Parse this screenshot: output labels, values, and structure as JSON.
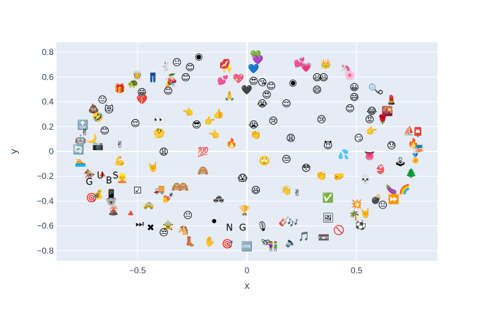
{
  "chart_data": {
    "type": "scatter",
    "xlabel": "x",
    "ylabel": "y",
    "xlim": [
      -0.87,
      0.87
    ],
    "ylim": [
      -0.88,
      0.88
    ],
    "xticks": [
      -0.5,
      0,
      0.5
    ],
    "xtick_labels": [
      "−0.5",
      "0",
      "0.5"
    ],
    "yticks": [
      -0.8,
      -0.6,
      -0.4,
      -0.2,
      0,
      0.2,
      0.4,
      0.6,
      0.8
    ],
    "ytick_labels": [
      "−0.8",
      "−0.6",
      "−0.4",
      "−0.2",
      "0",
      "0.2",
      "0.4",
      "0.6",
      "0.8"
    ],
    "grid": true,
    "colors": {
      "plot_bg": "#e5ecf6",
      "grid": "#ffffff",
      "text": "#2a3f5f"
    },
    "points": [
      {
        "x": -0.5,
        "y": 0.62,
        "m": "👳"
      },
      {
        "x": -0.37,
        "y": 0.69,
        "m": "🐇"
      },
      {
        "x": -0.32,
        "y": 0.72,
        "m": "😐"
      },
      {
        "x": -0.22,
        "y": 0.77,
        "m": "◉"
      },
      {
        "x": -0.1,
        "y": 0.71,
        "m": "💋"
      },
      {
        "x": -0.09,
        "y": 0.67,
        "m": "✨"
      },
      {
        "x": 0.04,
        "y": 0.78,
        "m": "💚"
      },
      {
        "x": 0.05,
        "y": 0.74,
        "m": "💜"
      },
      {
        "x": 0.24,
        "y": 0.72,
        "m": "💕"
      },
      {
        "x": 0.27,
        "y": 0.68,
        "m": "💗"
      },
      {
        "x": 0.36,
        "y": 0.71,
        "m": "👑"
      },
      {
        "x": 0.45,
        "y": 0.67,
        "m": "🦄"
      },
      {
        "x": 0.47,
        "y": 0.62,
        "m": "🌸"
      },
      {
        "x": -0.52,
        "y": 0.55,
        "m": "🐢"
      },
      {
        "x": -0.43,
        "y": 0.6,
        "m": "👖"
      },
      {
        "x": -0.34,
        "y": 0.59,
        "m": "🍒"
      },
      {
        "x": -0.35,
        "y": 0.56,
        "m": "🎉"
      },
      {
        "x": -0.26,
        "y": 0.68,
        "m": "😊"
      },
      {
        "x": 0.03,
        "y": 0.67,
        "m": "💙"
      },
      {
        "x": -0.11,
        "y": 0.58,
        "m": "💕"
      },
      {
        "x": -0.04,
        "y": 0.59,
        "m": "💖"
      },
      {
        "x": 0.03,
        "y": 0.57,
        "m": "😍"
      },
      {
        "x": 0.07,
        "y": 0.56,
        "m": "😘"
      },
      {
        "x": 0.11,
        "y": 0.53,
        "m": "😊"
      },
      {
        "x": 0.21,
        "y": 0.56,
        "m": "◉"
      },
      {
        "x": 0.32,
        "y": 0.6,
        "m": "😃"
      },
      {
        "x": 0.32,
        "y": 0.5,
        "m": "😄"
      },
      {
        "x": 0.49,
        "y": 0.52,
        "m": "😀"
      },
      {
        "x": 0.58,
        "y": 0.51,
        "m": "🔍"
      },
      {
        "x": 0.61,
        "y": 0.48,
        "m": "⚪"
      },
      {
        "x": -0.58,
        "y": 0.51,
        "m": "🎁"
      },
      {
        "x": -0.48,
        "y": 0.48,
        "m": "😁"
      },
      {
        "x": -0.36,
        "y": 0.49,
        "m": "😊"
      },
      {
        "x": -0.08,
        "y": 0.45,
        "m": "🙏"
      },
      {
        "x": 0.0,
        "y": 0.5,
        "m": "🖤"
      },
      {
        "x": 0.09,
        "y": 0.46,
        "m": "😍"
      },
      {
        "x": 0.49,
        "y": 0.44,
        "m": "😅"
      },
      {
        "x": -0.66,
        "y": 0.42,
        "m": "😐"
      },
      {
        "x": -0.48,
        "y": 0.42,
        "m": "💔"
      },
      {
        "x": 0.07,
        "y": 0.39,
        "m": "😭"
      },
      {
        "x": 0.18,
        "y": 0.39,
        "m": "😌"
      },
      {
        "x": 0.47,
        "y": 0.35,
        "m": "😊"
      },
      {
        "x": 0.57,
        "y": 0.33,
        "m": "😂"
      },
      {
        "x": 0.64,
        "y": 0.33,
        "m": "🌇"
      },
      {
        "x": 0.66,
        "y": 0.42,
        "m": "💄"
      },
      {
        "x": -0.7,
        "y": 0.35,
        "m": "💩"
      },
      {
        "x": -0.63,
        "y": 0.34,
        "m": "😻"
      },
      {
        "x": -0.68,
        "y": 0.28,
        "m": "🤣"
      },
      {
        "x": -0.4,
        "y": 0.26,
        "m": "👀"
      },
      {
        "x": -0.27,
        "y": 0.32,
        "m": "👈"
      },
      {
        "x": -0.13,
        "y": 0.31,
        "m": "👍"
      },
      {
        "x": -0.17,
        "y": 0.25,
        "m": "👉"
      },
      {
        "x": 0.12,
        "y": 0.25,
        "m": "😢"
      },
      {
        "x": 0.03,
        "y": 0.22,
        "m": "😭"
      },
      {
        "x": 0.34,
        "y": 0.26,
        "m": "😢"
      },
      {
        "x": 0.56,
        "y": 0.26,
        "m": "😡"
      },
      {
        "x": 0.62,
        "y": 0.26,
        "m": "🌹"
      },
      {
        "x": -0.75,
        "y": 0.22,
        "m": "🔝"
      },
      {
        "x": -0.51,
        "y": 0.23,
        "m": "😌"
      },
      {
        "x": -0.23,
        "y": 0.22,
        "m": "😎"
      },
      {
        "x": -0.74,
        "y": 0.16,
        "m": "✌"
      },
      {
        "x": -0.65,
        "y": 0.17,
        "m": "😊"
      },
      {
        "x": -0.4,
        "y": 0.15,
        "m": "🤔"
      },
      {
        "x": -0.15,
        "y": 0.14,
        "m": "👈"
      },
      {
        "x": 0.04,
        "y": 0.14,
        "m": "👏"
      },
      {
        "x": 0.2,
        "y": 0.11,
        "m": "😩"
      },
      {
        "x": 0.51,
        "y": 0.11,
        "m": "😏"
      },
      {
        "x": 0.57,
        "y": 0.17,
        "m": "👉"
      },
      {
        "x": 0.74,
        "y": 0.17,
        "m": "⛵"
      },
      {
        "x": 0.78,
        "y": 0.16,
        "m": "📮"
      },
      {
        "x": -0.76,
        "y": 0.1,
        "m": "🤖"
      },
      {
        "x": -0.71,
        "y": 0.11,
        "m": "🌙"
      },
      {
        "x": -0.58,
        "y": 0.06,
        "m": "✌"
      },
      {
        "x": -0.68,
        "y": 0.05,
        "m": "📷"
      },
      {
        "x": -0.07,
        "y": 0.07,
        "m": "🔥"
      },
      {
        "x": 0.37,
        "y": 0.05,
        "m": "😈"
      },
      {
        "x": 0.66,
        "y": 0.05,
        "m": "😓"
      },
      {
        "x": 0.76,
        "y": 0.07,
        "m": "🔥"
      },
      {
        "x": 0.78,
        "y": 0.02,
        "m": "🎏"
      },
      {
        "x": -0.77,
        "y": 0.02,
        "m": "🔄"
      },
      {
        "x": -0.38,
        "y": 0.0,
        "m": "😩"
      },
      {
        "x": -0.2,
        "y": 0.0,
        "m": "💯"
      },
      {
        "x": 0.44,
        "y": -0.02,
        "m": "💦"
      },
      {
        "x": 0.56,
        "y": -0.03,
        "m": "👅"
      },
      {
        "x": 0.77,
        "y": -0.05,
        "m": "🏅"
      },
      {
        "x": -0.76,
        "y": -0.08,
        "m": "🏊"
      },
      {
        "x": -0.58,
        "y": -0.07,
        "m": "💪"
      },
      {
        "x": 0.08,
        "y": -0.07,
        "m": "🙄"
      },
      {
        "x": 0.18,
        "y": -0.06,
        "m": "😒"
      },
      {
        "x": 0.7,
        "y": -0.08,
        "m": "🕹"
      },
      {
        "x": -0.43,
        "y": -0.12,
        "m": "🤘"
      },
      {
        "x": -0.2,
        "y": -0.15,
        "m": "🙈"
      },
      {
        "x": 0.27,
        "y": -0.13,
        "m": "😳"
      },
      {
        "x": 0.75,
        "y": -0.17,
        "m": "🌲"
      },
      {
        "x": -0.72,
        "y": -0.18,
        "m": "🏇"
      },
      {
        "x": -0.66,
        "y": -0.18,
        "m": "🔺"
      },
      {
        "x": -0.57,
        "y": -0.21,
        "m": "👱"
      },
      {
        "x": -0.29,
        "y": -0.28,
        "m": "🙈"
      },
      {
        "x": -0.02,
        "y": -0.21,
        "m": "😱"
      },
      {
        "x": 0.34,
        "y": -0.19,
        "m": "👏"
      },
      {
        "x": 0.42,
        "y": -0.2,
        "m": "🤛"
      },
      {
        "x": 0.54,
        "y": -0.22,
        "m": "💀"
      },
      {
        "x": 0.61,
        "y": -0.14,
        "m": "👙"
      },
      {
        "x": -0.62,
        "y": -0.34,
        "m": "📱"
      },
      {
        "x": -0.5,
        "y": -0.31,
        "m": "☑"
      },
      {
        "x": -0.4,
        "y": -0.3,
        "m": "🚚"
      },
      {
        "x": -0.32,
        "y": -0.28,
        "m": "🙈"
      },
      {
        "x": 0.04,
        "y": -0.31,
        "m": "😆"
      },
      {
        "x": 0.18,
        "y": -0.31,
        "m": "👋"
      },
      {
        "x": 0.23,
        "y": -0.33,
        "m": "✌"
      },
      {
        "x": 0.66,
        "y": -0.3,
        "m": "🍆"
      },
      {
        "x": 0.72,
        "y": -0.3,
        "m": "🌈"
      },
      {
        "x": -0.68,
        "y": -0.34,
        "m": "💰"
      },
      {
        "x": -0.71,
        "y": -0.37,
        "m": "🎯"
      },
      {
        "x": -0.36,
        "y": -0.37,
        "m": "💅"
      },
      {
        "x": -0.13,
        "y": -0.37,
        "m": "🚓"
      },
      {
        "x": 0.37,
        "y": -0.37,
        "m": "✅"
      },
      {
        "x": 0.59,
        "y": -0.38,
        "m": "💣"
      },
      {
        "x": 0.67,
        "y": -0.38,
        "m": "⏩"
      },
      {
        "x": -0.62,
        "y": -0.4,
        "m": "🐨"
      },
      {
        "x": -0.45,
        "y": -0.42,
        "m": "🚕"
      },
      {
        "x": 0.5,
        "y": -0.42,
        "m": "💥"
      },
      {
        "x": 0.62,
        "y": -0.43,
        "m": "😐"
      },
      {
        "x": -0.61,
        "y": -0.47,
        "m": "🌋"
      },
      {
        "x": -0.53,
        "y": -0.49,
        "m": "🔺"
      },
      {
        "x": -0.27,
        "y": -0.51,
        "m": "😐"
      },
      {
        "x": -0.01,
        "y": -0.47,
        "m": "🏆"
      },
      {
        "x": 0.49,
        "y": -0.51,
        "m": "🌴"
      },
      {
        "x": 0.54,
        "y": -0.49,
        "m": "🤘"
      },
      {
        "x": -0.49,
        "y": -0.58,
        "m": "⏭"
      },
      {
        "x": -0.44,
        "y": -0.61,
        "m": "✖"
      },
      {
        "x": -0.36,
        "y": -0.59,
        "m": "🚖"
      },
      {
        "x": -0.15,
        "y": -0.56,
        "m": "⚫"
      },
      {
        "x": -0.08,
        "y": -0.61,
        "m": "N"
      },
      {
        "x": -0.02,
        "y": -0.61,
        "m": "G"
      },
      {
        "x": 0.07,
        "y": -0.6,
        "m": "🎙"
      },
      {
        "x": 0.17,
        "y": -0.56,
        "m": "🎸"
      },
      {
        "x": 0.21,
        "y": -0.57,
        "m": "🎶"
      },
      {
        "x": 0.37,
        "y": -0.53,
        "m": "🖼"
      },
      {
        "x": 0.52,
        "y": -0.59,
        "m": "⚽"
      },
      {
        "x": -0.38,
        "y": -0.65,
        "m": "😒"
      },
      {
        "x": -0.29,
        "y": -0.63,
        "m": "🐴"
      },
      {
        "x": -0.26,
        "y": -0.72,
        "m": "👢"
      },
      {
        "x": -0.17,
        "y": -0.72,
        "m": "✋"
      },
      {
        "x": -0.09,
        "y": -0.74,
        "m": "🎯"
      },
      {
        "x": 0.0,
        "y": -0.76,
        "m": "🆒"
      },
      {
        "x": 0.09,
        "y": -0.73,
        "m": "🛰"
      },
      {
        "x": 0.12,
        "y": -0.76,
        "m": "👫"
      },
      {
        "x": 0.2,
        "y": -0.73,
        "m": "🔈"
      },
      {
        "x": 0.26,
        "y": -0.68,
        "m": "🎵"
      },
      {
        "x": 0.35,
        "y": -0.69,
        "m": "📼"
      },
      {
        "x": 0.42,
        "y": -0.63,
        "m": "🚫"
      },
      {
        "x": -0.72,
        "y": -0.24,
        "m": "G"
      },
      {
        "x": -0.67,
        "y": -0.19,
        "m": "U"
      },
      {
        "x": -0.6,
        "y": -0.19,
        "m": "S"
      },
      {
        "x": -0.63,
        "y": -0.23,
        "m": "B"
      },
      {
        "x": -0.28,
        "y": 0.6,
        "m": "😊"
      },
      {
        "x": 0.35,
        "y": 0.6,
        "m": "😃"
      }
    ]
  }
}
